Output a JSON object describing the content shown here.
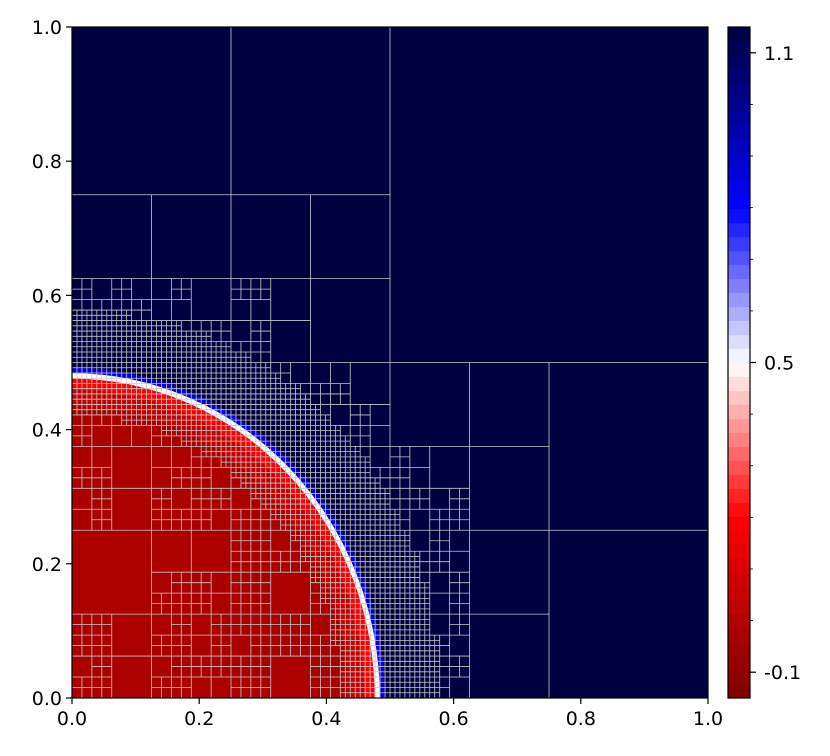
{
  "chart_data": {
    "type": "heatmap",
    "title": "",
    "xlabel": "",
    "ylabel": "",
    "xlim": [
      0.0,
      1.0
    ],
    "ylim": [
      0.0,
      1.0
    ],
    "x_ticks": [
      "0.0",
      "0.2",
      "0.4",
      "0.6",
      "0.8",
      "1.0"
    ],
    "y_ticks": [
      "0.0",
      "0.2",
      "0.4",
      "0.6",
      "0.8",
      "1.0"
    ],
    "grid": "adaptive mesh (quadtree) cell edges drawn in light gray",
    "field": {
      "description": "scalar field: ~-0.1 inside a quarter disc centred at the origin, ~1.1 outside",
      "interface_radius": 0.48,
      "inside_value": -0.1,
      "outside_value": 1.1
    },
    "colorbar": {
      "range": [
        -0.15,
        1.15
      ],
      "tick_values": [
        -0.1,
        0.5,
        1.1
      ],
      "tick_labels": [
        "-0.1",
        "0.5",
        "1.1"
      ],
      "colormap": "seismic_r",
      "colors": {
        "low": "#800000",
        "lower": "#ff0000",
        "mid": "#ffffff",
        "upper": "#0000ff",
        "high": "#000040"
      }
    },
    "mesh_color": "#c8c8c8"
  }
}
